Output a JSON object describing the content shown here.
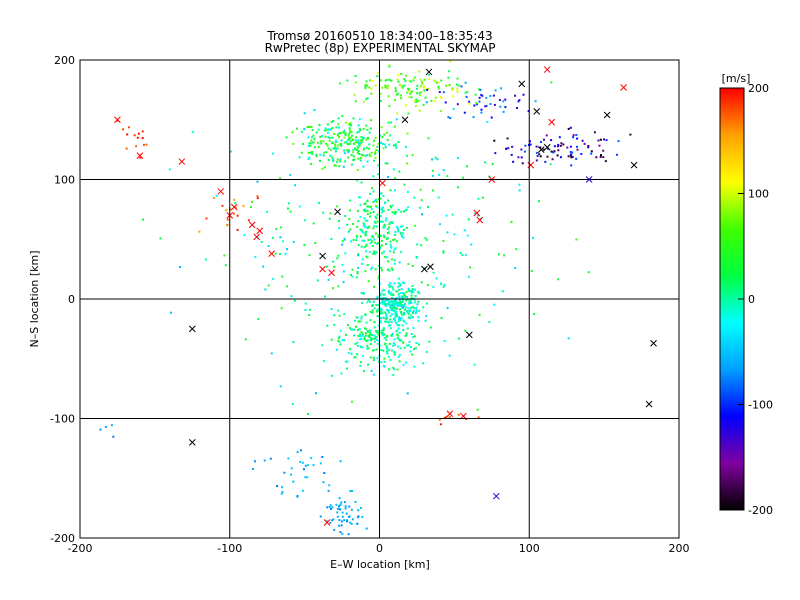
{
  "chart_data": {
    "type": "scatter",
    "title": "Tromsø 20160510 18:34:00–18:35:43",
    "subtitle": "RwPretec (8p) EXPERIMENTAL SKYMAP",
    "xlabel": "E–W location [km]",
    "ylabel": "N–S location [km]",
    "xlim": [
      -200,
      200
    ],
    "ylim": [
      -200,
      200
    ],
    "x_ticks": [
      -200,
      -100,
      0,
      100,
      200
    ],
    "y_ticks": [
      -200,
      -100,
      0,
      100,
      200
    ],
    "grid": true,
    "colorbar": {
      "label": "[m/s]",
      "range": [
        -200,
        200
      ],
      "ticks": [
        -200,
        -100,
        0,
        100,
        200
      ],
      "colors": [
        "#000000",
        "#8000a0",
        "#0000ff",
        "#00a0ff",
        "#00ffff",
        "#00ff40",
        "#40ff00",
        "#ffff00",
        "#ffa000",
        "#ff0000"
      ]
    },
    "point_groups": [
      {
        "name": "upper-left-red",
        "cx": -165,
        "cy": 135,
        "rx": 15,
        "ry": 15,
        "n": 14,
        "vmin": 170,
        "vmax": 200
      },
      {
        "name": "left-red-arc",
        "cx": -95,
        "cy": 70,
        "rx": 20,
        "ry": 22,
        "n": 18,
        "vmin": 150,
        "vmax": 200
      },
      {
        "name": "north-cluster",
        "cx": -20,
        "cy": 130,
        "rx": 35,
        "ry": 20,
        "n": 260,
        "vmin": -40,
        "vmax": 80
      },
      {
        "name": "north-top-scatter",
        "cx": 20,
        "cy": 175,
        "rx": 45,
        "ry": 20,
        "n": 140,
        "vmin": 0,
        "vmax": 120
      },
      {
        "name": "northeast-blue-band",
        "cx": 120,
        "cy": 125,
        "rx": 45,
        "ry": 15,
        "n": 90,
        "vmin": -200,
        "vmax": -80
      },
      {
        "name": "northeast-arc",
        "cx": 70,
        "cy": 165,
        "rx": 30,
        "ry": 15,
        "n": 45,
        "vmin": -150,
        "vmax": -60
      },
      {
        "name": "central-column",
        "cx": 0,
        "cy": 60,
        "rx": 25,
        "ry": 40,
        "n": 220,
        "vmin": -30,
        "vmax": 50
      },
      {
        "name": "center-dense",
        "cx": 10,
        "cy": -5,
        "rx": 18,
        "ry": 18,
        "n": 260,
        "vmin": -40,
        "vmax": 20
      },
      {
        "name": "south-cluster",
        "cx": 0,
        "cy": -35,
        "rx": 30,
        "ry": 25,
        "n": 220,
        "vmin": -30,
        "vmax": 40
      },
      {
        "name": "wide-scatter",
        "cx": 0,
        "cy": 40,
        "rx": 120,
        "ry": 110,
        "n": 260,
        "vmin": -60,
        "vmax": 60
      },
      {
        "name": "south-red",
        "cx": 50,
        "cy": -100,
        "rx": 15,
        "ry": 8,
        "n": 8,
        "vmin": 160,
        "vmax": 200
      },
      {
        "name": "lower-cyan",
        "cx": -55,
        "cy": -145,
        "rx": 35,
        "ry": 25,
        "n": 35,
        "vmin": -80,
        "vmax": -40
      },
      {
        "name": "bottom-cluster",
        "cx": -25,
        "cy": -180,
        "rx": 15,
        "ry": 15,
        "n": 55,
        "vmin": -75,
        "vmax": -50
      },
      {
        "name": "far-left",
        "cx": -180,
        "cy": -110,
        "rx": 10,
        "ry": 6,
        "n": 4,
        "vmin": -80,
        "vmax": -60
      }
    ],
    "crosses": [
      {
        "x": -175,
        "y": 150,
        "v": 200
      },
      {
        "x": -160,
        "y": 120,
        "v": 200
      },
      {
        "x": -132,
        "y": 115,
        "v": 200
      },
      {
        "x": -106,
        "y": 90,
        "v": 200
      },
      {
        "x": -97,
        "y": 77,
        "v": 200
      },
      {
        "x": -100,
        "y": 70,
        "v": 200
      },
      {
        "x": -85,
        "y": 62,
        "v": 200
      },
      {
        "x": -80,
        "y": 57,
        "v": 200
      },
      {
        "x": -82,
        "y": 52,
        "v": 200
      },
      {
        "x": -72,
        "y": 38,
        "v": 200
      },
      {
        "x": -38,
        "y": 25,
        "v": 200
      },
      {
        "x": -32,
        "y": 22,
        "v": 200
      },
      {
        "x": -125,
        "y": -25,
        "v": -200
      },
      {
        "x": -125,
        "y": -120,
        "v": -200
      },
      {
        "x": 183,
        "y": -37,
        "v": -200
      },
      {
        "x": 180,
        "y": -88,
        "v": -200
      },
      {
        "x": 60,
        "y": -30,
        "v": -200
      },
      {
        "x": 30,
        "y": 25,
        "v": -200
      },
      {
        "x": 34,
        "y": 27,
        "v": -200
      },
      {
        "x": -38,
        "y": 36,
        "v": -200
      },
      {
        "x": -28,
        "y": 73,
        "v": -200
      },
      {
        "x": 2,
        "y": 97,
        "v": 200
      },
      {
        "x": 75,
        "y": 100,
        "v": 200
      },
      {
        "x": 65,
        "y": 72,
        "v": 200
      },
      {
        "x": 67,
        "y": 66,
        "v": 200
      },
      {
        "x": 112,
        "y": 192,
        "v": 200
      },
      {
        "x": 163,
        "y": 177,
        "v": 200
      },
      {
        "x": 95,
        "y": 180,
        "v": -200
      },
      {
        "x": 152,
        "y": 154,
        "v": -200
      },
      {
        "x": 170,
        "y": 112,
        "v": -200
      },
      {
        "x": 105,
        "y": 157,
        "v": -200
      },
      {
        "x": 115,
        "y": 148,
        "v": 200
      },
      {
        "x": 101,
        "y": 112,
        "v": 200
      },
      {
        "x": 47,
        "y": -96,
        "v": 200
      },
      {
        "x": 56,
        "y": -98,
        "v": 200
      },
      {
        "x": -35,
        "y": -187,
        "v": 200
      },
      {
        "x": 78,
        "y": -165,
        "v": -120
      },
      {
        "x": 140,
        "y": 100,
        "v": -120
      },
      {
        "x": 108,
        "y": 125,
        "v": -200
      },
      {
        "x": 112,
        "y": 127,
        "v": -200
      },
      {
        "x": 17,
        "y": 150,
        "v": -200
      },
      {
        "x": 33,
        "y": 190,
        "v": -200
      }
    ]
  }
}
